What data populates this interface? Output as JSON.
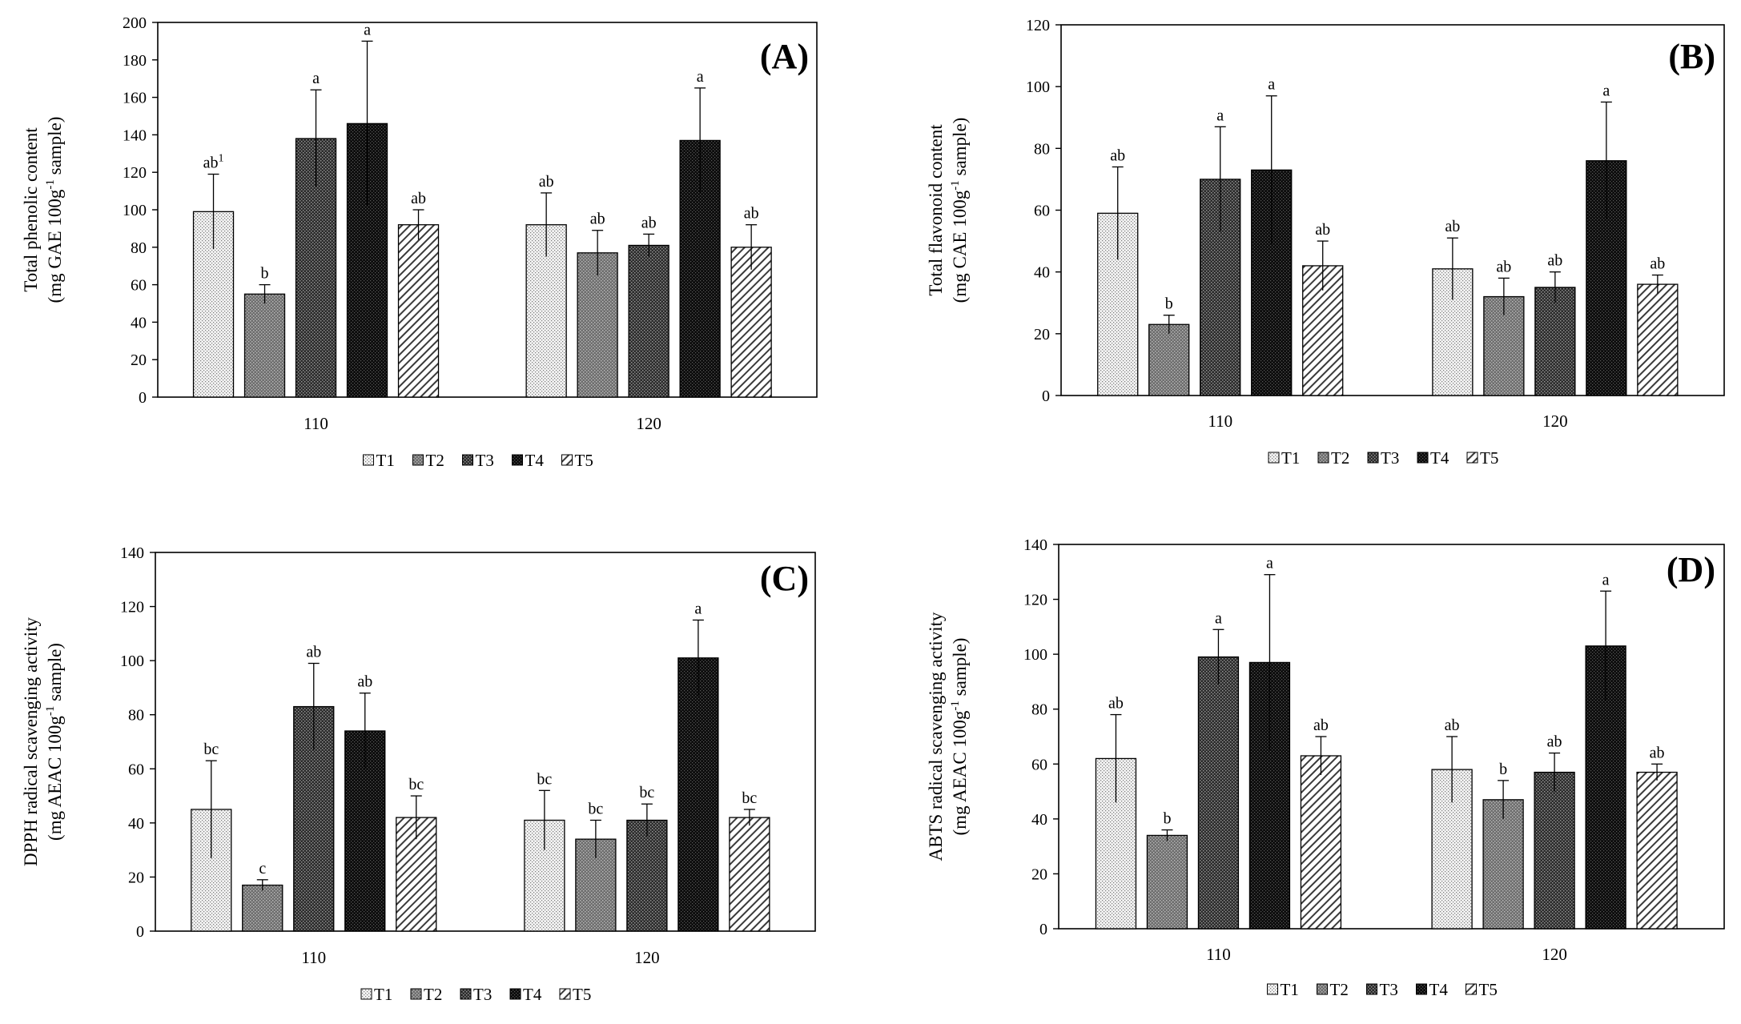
{
  "legend": [
    "T1",
    "T2",
    "T3",
    "T4",
    "T5"
  ],
  "chart_data": [
    {
      "type": "bar",
      "panel_label": "(A)",
      "ylabel_line1": "Total phenolic content",
      "ylabel_line2": "(mg GAE 100g",
      "ylabel_sup": "-1",
      "ylabel_line2_end": " sample)",
      "ylim": [
        0,
        200
      ],
      "yticks": [
        0,
        20,
        40,
        60,
        80,
        100,
        120,
        140,
        160,
        180,
        200
      ],
      "categories": [
        "110",
        "120"
      ],
      "series": [
        {
          "name": "T1",
          "values": [
            99,
            92
          ],
          "errors": [
            20,
            17
          ],
          "labels": [
            "ab",
            "ab"
          ],
          "label_sup": [
            "1",
            ""
          ]
        },
        {
          "name": "T2",
          "values": [
            55,
            77
          ],
          "errors": [
            5,
            12
          ],
          "labels": [
            "b",
            "ab"
          ],
          "label_sup": [
            "",
            ""
          ]
        },
        {
          "name": "T3",
          "values": [
            138,
            81
          ],
          "errors": [
            26,
            6
          ],
          "labels": [
            "a",
            "ab"
          ],
          "label_sup": [
            "",
            ""
          ]
        },
        {
          "name": "T4",
          "values": [
            146,
            137
          ],
          "errors": [
            44,
            28
          ],
          "labels": [
            "a",
            "a"
          ],
          "label_sup": [
            "",
            ""
          ]
        },
        {
          "name": "T5",
          "values": [
            92,
            80
          ],
          "errors": [
            8,
            12
          ],
          "labels": [
            "ab",
            "ab"
          ],
          "label_sup": [
            "",
            ""
          ]
        }
      ]
    },
    {
      "type": "bar",
      "panel_label": "(B)",
      "ylabel_line1": "Total flavonoid content",
      "ylabel_line2": "(mg CAE 100g",
      "ylabel_sup": "-1",
      "ylabel_line2_end": " sample)",
      "ylim": [
        0,
        120
      ],
      "yticks": [
        0,
        20,
        40,
        60,
        80,
        100,
        120
      ],
      "categories": [
        "110",
        "120"
      ],
      "series": [
        {
          "name": "T1",
          "values": [
            59,
            41
          ],
          "errors": [
            15,
            10
          ],
          "labels": [
            "ab",
            "ab"
          ],
          "label_sup": [
            "",
            ""
          ]
        },
        {
          "name": "T2",
          "values": [
            23,
            32
          ],
          "errors": [
            3,
            6
          ],
          "labels": [
            "b",
            "ab"
          ],
          "label_sup": [
            "",
            ""
          ]
        },
        {
          "name": "T3",
          "values": [
            70,
            35
          ],
          "errors": [
            17,
            5
          ],
          "labels": [
            "a",
            "ab"
          ],
          "label_sup": [
            "",
            ""
          ]
        },
        {
          "name": "T4",
          "values": [
            73,
            76
          ],
          "errors": [
            24,
            19
          ],
          "labels": [
            "a",
            "a"
          ],
          "label_sup": [
            "",
            ""
          ]
        },
        {
          "name": "T5",
          "values": [
            42,
            36
          ],
          "errors": [
            8,
            3
          ],
          "labels": [
            "ab",
            "ab"
          ],
          "label_sup": [
            "",
            ""
          ]
        }
      ]
    },
    {
      "type": "bar",
      "panel_label": "(C)",
      "ylabel_line1": "DPPH radical scavenging activity",
      "ylabel_line2": "(mg AEAC 100g",
      "ylabel_sup": "-1",
      "ylabel_line2_end": " sample)",
      "ylim": [
        0,
        140
      ],
      "yticks": [
        0,
        20,
        40,
        60,
        80,
        100,
        120,
        140
      ],
      "categories": [
        "110",
        "120"
      ],
      "series": [
        {
          "name": "T1",
          "values": [
            45,
            41
          ],
          "errors": [
            18,
            11
          ],
          "labels": [
            "bc",
            "bc"
          ],
          "label_sup": [
            "",
            ""
          ]
        },
        {
          "name": "T2",
          "values": [
            17,
            34
          ],
          "errors": [
            2,
            7
          ],
          "labels": [
            "c",
            "bc"
          ],
          "label_sup": [
            "",
            ""
          ]
        },
        {
          "name": "T3",
          "values": [
            83,
            41
          ],
          "errors": [
            16,
            6
          ],
          "labels": [
            "ab",
            "bc"
          ],
          "label_sup": [
            "",
            ""
          ]
        },
        {
          "name": "T4",
          "values": [
            74,
            101
          ],
          "errors": [
            14,
            14
          ],
          "labels": [
            "ab",
            "a"
          ],
          "label_sup": [
            "",
            ""
          ]
        },
        {
          "name": "T5",
          "values": [
            42,
            42
          ],
          "errors": [
            8,
            3
          ],
          "labels": [
            "bc",
            "bc"
          ],
          "label_sup": [
            "",
            ""
          ]
        }
      ]
    },
    {
      "type": "bar",
      "panel_label": "(D)",
      "ylabel_line1": "ABTS radical scavenging activity",
      "ylabel_line2": "(mg AEAC 100g",
      "ylabel_sup": "-1",
      "ylabel_line2_end": " sample)",
      "ylim": [
        0,
        140
      ],
      "yticks": [
        0,
        20,
        40,
        60,
        80,
        100,
        120,
        140
      ],
      "categories": [
        "110",
        "120"
      ],
      "series": [
        {
          "name": "T1",
          "values": [
            62,
            58
          ],
          "errors": [
            16,
            12
          ],
          "labels": [
            "ab",
            "ab"
          ],
          "label_sup": [
            "",
            ""
          ]
        },
        {
          "name": "T2",
          "values": [
            34,
            47
          ],
          "errors": [
            2,
            7
          ],
          "labels": [
            "b",
            "b"
          ],
          "label_sup": [
            "",
            ""
          ]
        },
        {
          "name": "T3",
          "values": [
            99,
            57
          ],
          "errors": [
            10,
            7
          ],
          "labels": [
            "a",
            "ab"
          ],
          "label_sup": [
            "",
            ""
          ]
        },
        {
          "name": "T4",
          "values": [
            97,
            103
          ],
          "errors": [
            32,
            20
          ],
          "labels": [
            "a",
            "a"
          ],
          "label_sup": [
            "",
            ""
          ]
        },
        {
          "name": "T5",
          "values": [
            63,
            57
          ],
          "errors": [
            7,
            3
          ],
          "labels": [
            "ab",
            "ab"
          ],
          "label_sup": [
            "",
            ""
          ]
        }
      ]
    }
  ]
}
